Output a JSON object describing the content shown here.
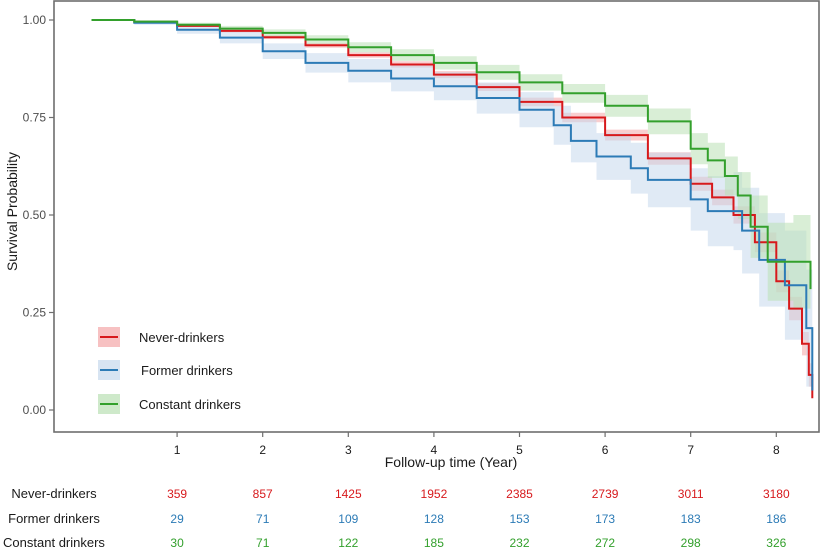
{
  "chart_data": {
    "type": "line",
    "subtype": "kaplan-meier",
    "title": "",
    "xlabel": "Follow-up time (Year)",
    "ylabel": "Survival Probability",
    "xlim": [
      0,
      8.45
    ],
    "ylim": [
      0,
      1
    ],
    "x_ticks": [
      1,
      2,
      3,
      4,
      5,
      6,
      7,
      8
    ],
    "x_tick_labels": [
      "1",
      "2",
      "3",
      "4",
      "5",
      "6",
      "7",
      "8"
    ],
    "y_ticks": [
      0,
      0.25,
      0.5,
      0.75,
      1
    ],
    "y_tick_labels": [
      "0.00",
      "0.25",
      "0.50",
      "0.75",
      "1.00"
    ],
    "grid": false,
    "legend_position": "bottom-left",
    "confidence_bands": true,
    "series": [
      {
        "name": "Never-drinkers",
        "color": "#d7191c",
        "band_color": "#f4a6a8",
        "x": [
          0,
          0.5,
          1,
          1.5,
          2,
          2.5,
          3,
          3.5,
          4,
          4.5,
          5,
          5.5,
          6,
          6.5,
          7,
          7.25,
          7.5,
          7.75,
          8,
          8.15,
          8.3,
          8.38,
          8.42
        ],
        "y": [
          1.0,
          0.995,
          0.985,
          0.972,
          0.956,
          0.935,
          0.91,
          0.886,
          0.86,
          0.828,
          0.79,
          0.75,
          0.705,
          0.645,
          0.58,
          0.545,
          0.5,
          0.43,
          0.33,
          0.26,
          0.17,
          0.09,
          0.03
        ],
        "ci_halfwidth": [
          0,
          0.002,
          0.003,
          0.004,
          0.005,
          0.006,
          0.007,
          0.008,
          0.009,
          0.01,
          0.011,
          0.012,
          0.014,
          0.016,
          0.018,
          0.02,
          0.022,
          0.025,
          0.028,
          0.03,
          0.03,
          0.03,
          0.02
        ]
      },
      {
        "name": "Former drinkers",
        "color": "#2c7bb6",
        "band_color": "#c6d9ec",
        "x": [
          0,
          0.5,
          1,
          1.5,
          2,
          2.5,
          3,
          3.5,
          4,
          4.5,
          5,
          5.4,
          5.6,
          5.9,
          6.3,
          6.5,
          7,
          7.2,
          7.5,
          7.6,
          7.8,
          8.1,
          8.35,
          8.42
        ],
        "y": [
          1.0,
          0.993,
          0.975,
          0.955,
          0.92,
          0.89,
          0.87,
          0.85,
          0.83,
          0.8,
          0.77,
          0.73,
          0.69,
          0.65,
          0.62,
          0.59,
          0.54,
          0.51,
          0.51,
          0.46,
          0.385,
          0.32,
          0.21,
          0.05
        ],
        "ci_halfwidth": [
          0,
          0.005,
          0.01,
          0.015,
          0.02,
          0.025,
          0.03,
          0.033,
          0.036,
          0.04,
          0.045,
          0.05,
          0.055,
          0.06,
          0.065,
          0.07,
          0.08,
          0.09,
          0.1,
          0.11,
          0.12,
          0.14,
          0.15,
          0.05
        ]
      },
      {
        "name": "Constant drinkers",
        "color": "#33a02c",
        "band_color": "#b9e0b4",
        "x": [
          0,
          0.5,
          1,
          1.5,
          2,
          2.5,
          3,
          3.5,
          4,
          4.5,
          5,
          5.5,
          6,
          6.5,
          7,
          7.2,
          7.4,
          7.55,
          7.7,
          7.9,
          8.2,
          8.4
        ],
        "y": [
          1.0,
          0.996,
          0.988,
          0.978,
          0.967,
          0.95,
          0.93,
          0.91,
          0.89,
          0.866,
          0.84,
          0.812,
          0.78,
          0.74,
          0.67,
          0.64,
          0.6,
          0.55,
          0.47,
          0.38,
          0.38,
          0.31
        ],
        "ci_halfwidth": [
          0,
          0.003,
          0.005,
          0.007,
          0.009,
          0.011,
          0.013,
          0.015,
          0.017,
          0.019,
          0.021,
          0.024,
          0.028,
          0.033,
          0.04,
          0.045,
          0.05,
          0.06,
          0.08,
          0.1,
          0.12,
          0.12
        ]
      }
    ],
    "risk_table": {
      "times": [
        1,
        2,
        3,
        4,
        5,
        6,
        7,
        8
      ],
      "rows": [
        {
          "group": "Never-drinkers",
          "color": "#d7191c",
          "values": [
            359,
            857,
            1425,
            1952,
            2385,
            2739,
            3011,
            3180
          ]
        },
        {
          "group": "Former drinkers",
          "color": "#2c7bb6",
          "values": [
            29,
            71,
            109,
            128,
            153,
            173,
            183,
            186
          ]
        },
        {
          "group": "Constant drinkers",
          "color": "#33a02c",
          "values": [
            30,
            71,
            122,
            185,
            232,
            272,
            298,
            326
          ]
        }
      ]
    }
  }
}
